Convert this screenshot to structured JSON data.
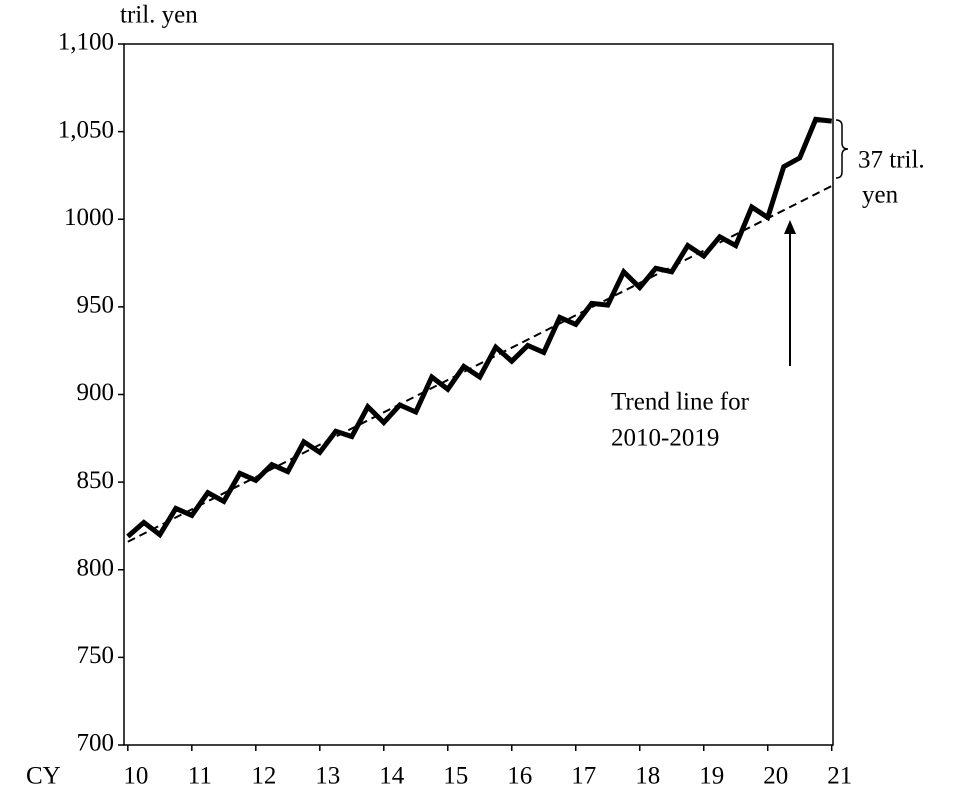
{
  "chart_data": {
    "type": "line",
    "y_label": "tril. yen",
    "x_label": "CY",
    "x": [
      10,
      10.25,
      10.5,
      10.75,
      11,
      11.25,
      11.5,
      11.75,
      12,
      12.25,
      12.5,
      12.75,
      13,
      13.25,
      13.5,
      13.75,
      14,
      14.25,
      14.5,
      14.75,
      15,
      15.25,
      15.5,
      15.75,
      16,
      16.25,
      16.5,
      16.75,
      17,
      17.25,
      17.5,
      17.75,
      18,
      18.25,
      18.5,
      18.75,
      19,
      19.25,
      19.5,
      19.75,
      20,
      20.25,
      20.5,
      20.75,
      21
    ],
    "series": [
      {
        "color": "#000000",
        "values": [
          819,
          827,
          820,
          835,
          831,
          844,
          839,
          855,
          851,
          860,
          856,
          873,
          867,
          879,
          876,
          893,
          884,
          894,
          890,
          910,
          903,
          916,
          910,
          927,
          919,
          928,
          924,
          944,
          940,
          952,
          951,
          970,
          961,
          972,
          970,
          985,
          979,
          990,
          985,
          1007,
          1001,
          1030,
          1035,
          1057,
          1056
        ]
      }
    ],
    "trend": {
      "x": [
        10,
        21
      ],
      "values": [
        816,
        1019
      ],
      "color": "#000000"
    },
    "xlim": [
      9.94,
      21.02
    ],
    "xticks": [
      10,
      11,
      12,
      13,
      14,
      15,
      16,
      17,
      18,
      19,
      20,
      21
    ],
    "ylim": [
      700,
      1100
    ],
    "yticks": [
      700,
      750,
      800,
      850,
      900,
      950,
      1000,
      {
        "value": 1050,
        "label": "1,050"
      },
      {
        "value": 1100,
        "label": "1,100"
      }
    ],
    "annotations": {
      "gap": [
        "37 tril.",
        "yen"
      ],
      "trend_note": [
        "Trend line for",
        "2010-2019"
      ]
    }
  }
}
